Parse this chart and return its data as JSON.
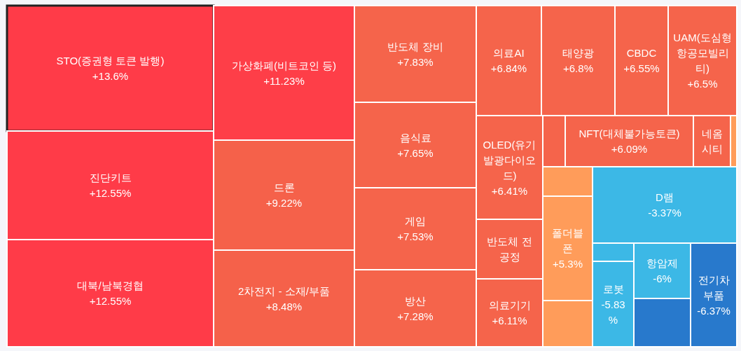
{
  "chart_data": {
    "type": "other",
    "categories": [
      "STO(증권형 토큰 발행)",
      "진단키트",
      "대북/남북경협",
      "가상화폐(비트코인 등)",
      "드론",
      "2차전지 - 소재/부품",
      "반도체 장비",
      "음식료",
      "게임",
      "방산",
      "의료AI",
      "태양광",
      "CBDC",
      "UAM(도심형항공모빌리티)",
      "OLED(유기발광다이오드)",
      "반도체 전 공정",
      "의료기기",
      null,
      "NFT(대체불가능토큰)",
      "네옴시티",
      null,
      null,
      "폴더블폰",
      null,
      "D램",
      null,
      "로봇",
      "항암제",
      null,
      "전기차 부품"
    ],
    "values": [
      13.6,
      12.55,
      12.55,
      11.23,
      9.22,
      8.48,
      7.83,
      7.65,
      7.53,
      7.28,
      6.84,
      6.8,
      6.55,
      6.5,
      6.41,
      null,
      6.11,
      null,
      6.09,
      null,
      null,
      null,
      5.3,
      null,
      -3.37,
      null,
      -5.83,
      -6,
      null,
      -6.37
    ],
    "value_labels": [
      "+13.6%",
      "+12.55%",
      "+12.55%",
      "+11.23%",
      "+9.22%",
      "+8.48%",
      "+7.83%",
      "+7.65%",
      "+7.53%",
      "+7.28%",
      "+6.84%",
      "+6.8%",
      "+6.55%",
      "+6.5%",
      "+6.41%",
      null,
      "+6.11%",
      null,
      "+6.09%",
      null,
      null,
      null,
      "+5.3%",
      null,
      "-3.37%",
      null,
      "-5.83%",
      "-6%",
      null,
      "-6.37%"
    ],
    "colors": [
      "#ff3b48",
      "#ff3b48",
      "#ff3b48",
      "#fe3e48",
      "#f5614a",
      "#f5614a",
      "#f5644b",
      "#f5644b",
      "#f5644b",
      "#f5644b",
      "#f5644b",
      "#f5644b",
      "#f5644b",
      "#f5644b",
      "#f5644b",
      "#f5644b",
      "#f5644b",
      "#f5644b",
      "#f5644b",
      "#f5644b",
      "#ff9c5a",
      "#ff9c5a",
      "#ff9c5a",
      "#ff9c5a",
      "#3cb8e6",
      "#3cb8e6",
      "#3cb8e6",
      "#3cb8e6",
      "#2879cc",
      "#2879cc"
    ]
  }
}
